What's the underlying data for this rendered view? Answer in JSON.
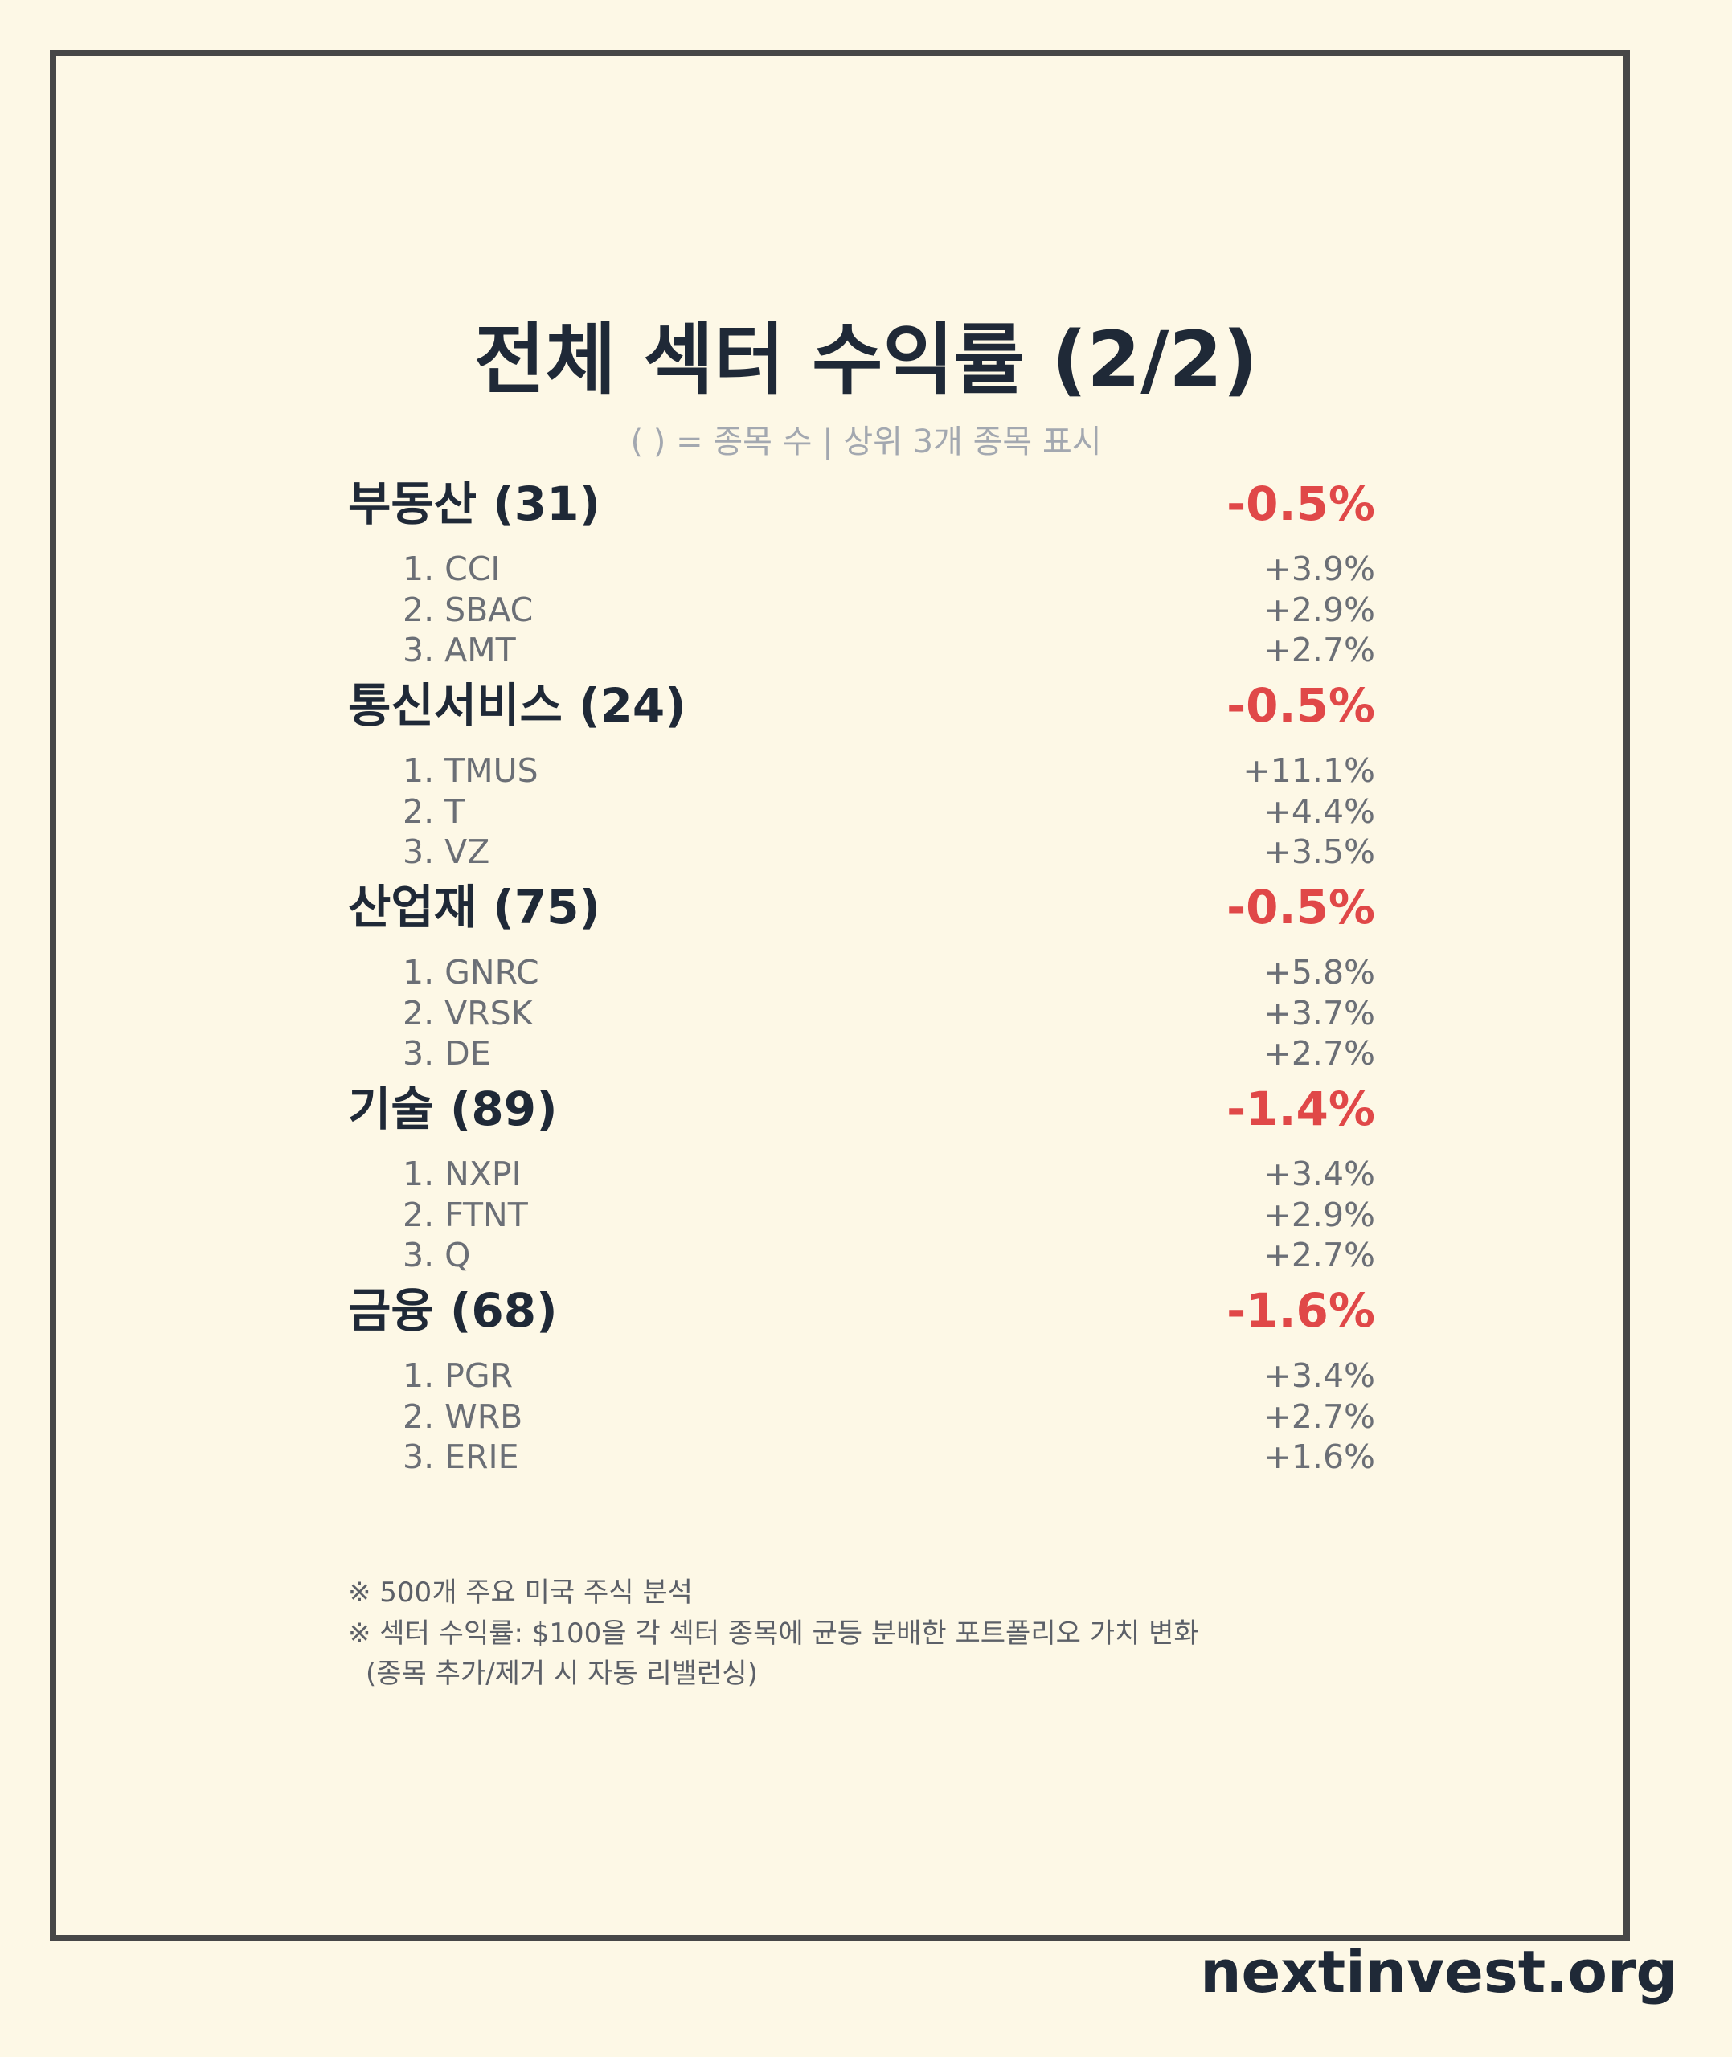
{
  "header": {
    "title": "전체 섹터 수익률 (2/2)",
    "subtitle": "( ) = 종목 수 | 상위 3개 종목 표시"
  },
  "sectors": [
    {
      "name": "부동산 (31)",
      "return": "-0.5%",
      "stocks": [
        {
          "label": "1. CCI",
          "return": "+3.9%"
        },
        {
          "label": "2. SBAC",
          "return": "+2.9%"
        },
        {
          "label": "3. AMT",
          "return": "+2.7%"
        }
      ]
    },
    {
      "name": "통신서비스 (24)",
      "return": "-0.5%",
      "stocks": [
        {
          "label": "1. TMUS",
          "return": "+11.1%"
        },
        {
          "label": "2. T",
          "return": "+4.4%"
        },
        {
          "label": "3. VZ",
          "return": "+3.5%"
        }
      ]
    },
    {
      "name": "산업재 (75)",
      "return": "-0.5%",
      "stocks": [
        {
          "label": "1. GNRC",
          "return": "+5.8%"
        },
        {
          "label": "2. VRSK",
          "return": "+3.7%"
        },
        {
          "label": "3. DE",
          "return": "+2.7%"
        }
      ]
    },
    {
      "name": "기술 (89)",
      "return": "-1.4%",
      "stocks": [
        {
          "label": "1. NXPI",
          "return": "+3.4%"
        },
        {
          "label": "2. FTNT",
          "return": "+2.9%"
        },
        {
          "label": "3. Q",
          "return": "+2.7%"
        }
      ]
    },
    {
      "name": "금융 (68)",
      "return": "-1.6%",
      "stocks": [
        {
          "label": "1. PGR",
          "return": "+3.4%"
        },
        {
          "label": "2. WRB",
          "return": "+2.7%"
        },
        {
          "label": "3. ERIE",
          "return": "+1.6%"
        }
      ]
    }
  ],
  "notes": [
    "※ 500개 주요 미국 주식 분석",
    "※ 섹터 수익률: $100을 각 섹터 종목에 균등 분배한 포트폴리오 가치 변화",
    "(종목 추가/제거 시 자동 리밸런싱)"
  ],
  "watermark": "nextinvest.org"
}
